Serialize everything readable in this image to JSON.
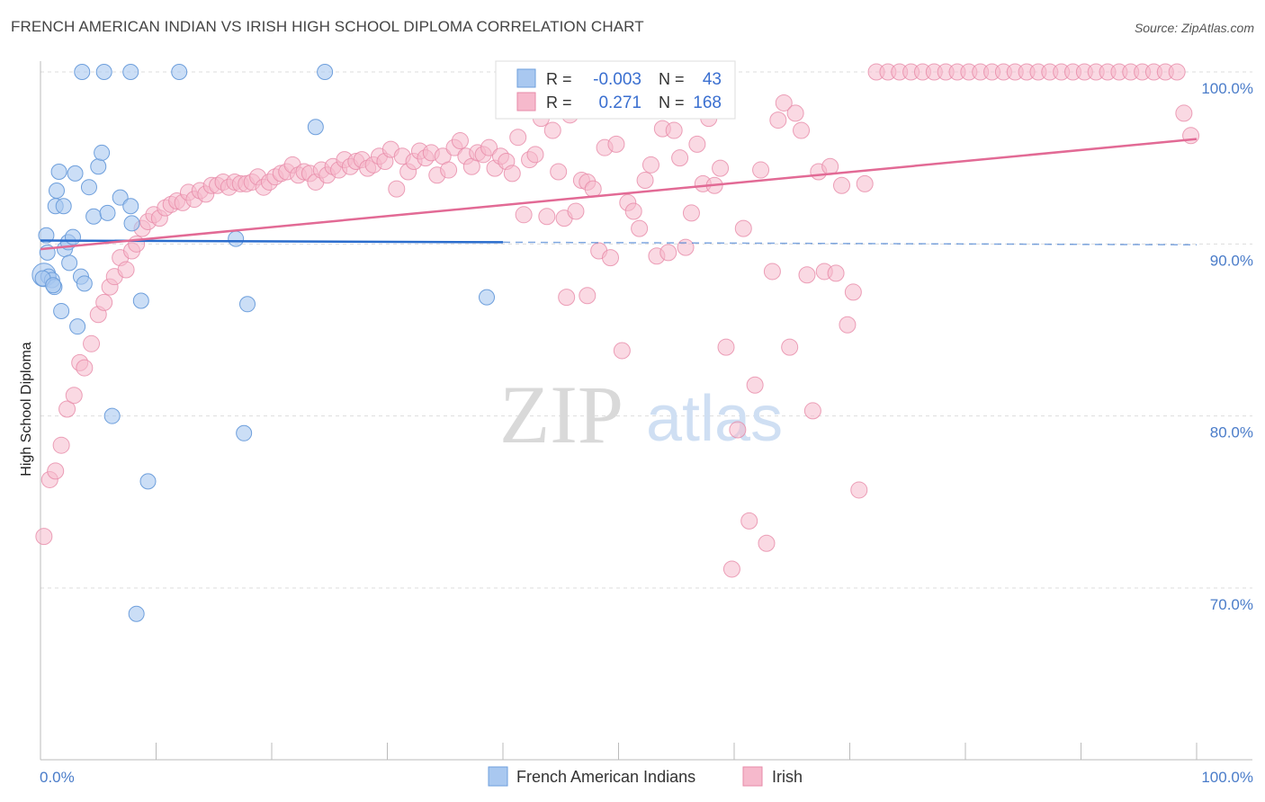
{
  "header": {
    "title": "FRENCH AMERICAN INDIAN VS IRISH HIGH SCHOOL DIPLOMA CORRELATION CHART",
    "source": "Source: ZipAtlas.com"
  },
  "watermark": {
    "zip": "ZIP",
    "atlas": "atlas"
  },
  "colors": {
    "blue_fill": "#a9c8f0",
    "blue_stroke": "#6e9fdc",
    "blue_line": "#2a6ccc",
    "pink_fill": "#f6b9cc",
    "pink_stroke": "#e78aa8",
    "pink_line": "#e26a95",
    "tick_label": "#4a7cc9",
    "grid": "#dddddd"
  },
  "legend": {
    "rows": [
      {
        "r_label": "R =",
        "r_value": "-0.003",
        "n_label": "N =",
        "n_value": "43"
      },
      {
        "r_label": "R =",
        "r_value": "0.271",
        "n_label": "N =",
        "n_value": "168"
      }
    ]
  },
  "chart_data": {
    "type": "scatter",
    "title": "FRENCH AMERICAN INDIAN VS IRISH HIGH SCHOOL DIPLOMA CORRELATION CHART",
    "xlabel": "",
    "ylabel": "High School Diploma",
    "xlim": [
      0,
      100
    ],
    "ylim": [
      60,
      100.5
    ],
    "x_tick_labels": [
      "0.0%",
      "100.0%"
    ],
    "y_ticks": [
      70,
      80,
      90,
      100
    ],
    "y_tick_labels": [
      "70.0%",
      "80.0%",
      "90.0%",
      "100.0%"
    ],
    "grid": true,
    "series": [
      {
        "name": "French American Indians",
        "r": -0.003,
        "n": 43,
        "trend": {
          "x0": 0,
          "y0": 90.2,
          "x1": 100,
          "y1": 89.95,
          "solid_until": 40
        },
        "points": [
          [
            0.3,
            88.2
          ],
          [
            0.5,
            90.5
          ],
          [
            0.6,
            89.5
          ],
          [
            0.7,
            88.1
          ],
          [
            1.0,
            87.9
          ],
          [
            1.2,
            87.5
          ],
          [
            1.3,
            92.2
          ],
          [
            1.4,
            93.1
          ],
          [
            1.6,
            94.2
          ],
          [
            1.8,
            86.1
          ],
          [
            2.0,
            92.2
          ],
          [
            2.1,
            89.7
          ],
          [
            2.4,
            90.1
          ],
          [
            2.5,
            88.9
          ],
          [
            2.8,
            90.4
          ],
          [
            3.0,
            94.1
          ],
          [
            3.2,
            85.2
          ],
          [
            3.5,
            88.1
          ],
          [
            3.8,
            87.7
          ],
          [
            4.2,
            93.3
          ],
          [
            4.6,
            91.6
          ],
          [
            5.0,
            94.5
          ],
          [
            5.3,
            95.3
          ],
          [
            5.8,
            91.8
          ],
          [
            6.2,
            80.0
          ],
          [
            6.9,
            92.7
          ],
          [
            7.8,
            92.2
          ],
          [
            7.9,
            91.2
          ],
          [
            8.3,
            68.5
          ],
          [
            8.7,
            86.7
          ],
          [
            9.3,
            76.2
          ],
          [
            16.9,
            90.3
          ],
          [
            17.6,
            79.0
          ],
          [
            17.9,
            86.5
          ],
          [
            23.8,
            96.8
          ],
          [
            38.6,
            86.9
          ],
          [
            3.6,
            100
          ],
          [
            5.5,
            100
          ],
          [
            7.8,
            100
          ],
          [
            12.0,
            100
          ],
          [
            24.6,
            100
          ],
          [
            0.2,
            88.0
          ],
          [
            1.1,
            87.6
          ]
        ]
      },
      {
        "name": "Irish",
        "r": 0.271,
        "n": 168,
        "trend": {
          "x0": 0,
          "y0": 89.7,
          "x1": 100,
          "y1": 96.1
        },
        "points": [
          [
            0.3,
            73.0
          ],
          [
            0.8,
            76.3
          ],
          [
            1.3,
            76.8
          ],
          [
            1.8,
            78.3
          ],
          [
            2.3,
            80.4
          ],
          [
            2.9,
            81.2
          ],
          [
            3.4,
            83.1
          ],
          [
            3.8,
            82.8
          ],
          [
            4.4,
            84.2
          ],
          [
            5.0,
            85.9
          ],
          [
            5.5,
            86.6
          ],
          [
            6.0,
            87.5
          ],
          [
            6.4,
            88.1
          ],
          [
            6.9,
            89.2
          ],
          [
            7.4,
            88.5
          ],
          [
            7.9,
            89.6
          ],
          [
            8.3,
            90.0
          ],
          [
            8.8,
            90.9
          ],
          [
            9.3,
            91.3
          ],
          [
            9.8,
            91.7
          ],
          [
            10.3,
            91.5
          ],
          [
            10.8,
            92.1
          ],
          [
            11.3,
            92.3
          ],
          [
            11.8,
            92.5
          ],
          [
            12.3,
            92.4
          ],
          [
            12.8,
            93.0
          ],
          [
            13.3,
            92.6
          ],
          [
            13.8,
            93.1
          ],
          [
            14.3,
            92.9
          ],
          [
            14.8,
            93.4
          ],
          [
            15.3,
            93.4
          ],
          [
            15.8,
            93.6
          ],
          [
            16.3,
            93.3
          ],
          [
            16.8,
            93.6
          ],
          [
            17.3,
            93.5
          ],
          [
            17.8,
            93.5
          ],
          [
            18.3,
            93.6
          ],
          [
            18.8,
            93.9
          ],
          [
            19.3,
            93.3
          ],
          [
            19.8,
            93.6
          ],
          [
            20.3,
            93.9
          ],
          [
            20.8,
            94.1
          ],
          [
            21.3,
            94.2
          ],
          [
            21.8,
            94.6
          ],
          [
            22.3,
            94.0
          ],
          [
            22.8,
            94.2
          ],
          [
            23.3,
            94.1
          ],
          [
            23.8,
            93.6
          ],
          [
            24.3,
            94.3
          ],
          [
            24.8,
            94.0
          ],
          [
            25.3,
            94.5
          ],
          [
            25.8,
            94.3
          ],
          [
            26.3,
            94.9
          ],
          [
            26.8,
            94.5
          ],
          [
            27.3,
            94.8
          ],
          [
            27.8,
            94.9
          ],
          [
            28.3,
            94.4
          ],
          [
            28.8,
            94.6
          ],
          [
            29.3,
            95.1
          ],
          [
            29.8,
            94.8
          ],
          [
            30.3,
            95.5
          ],
          [
            30.8,
            93.2
          ],
          [
            31.3,
            95.1
          ],
          [
            31.8,
            94.2
          ],
          [
            32.3,
            94.8
          ],
          [
            32.8,
            95.4
          ],
          [
            33.3,
            95.0
          ],
          [
            33.8,
            95.3
          ],
          [
            34.3,
            94.0
          ],
          [
            34.8,
            95.1
          ],
          [
            35.3,
            94.3
          ],
          [
            35.8,
            95.6
          ],
          [
            36.3,
            96.0
          ],
          [
            36.8,
            95.1
          ],
          [
            37.3,
            94.5
          ],
          [
            37.8,
            95.3
          ],
          [
            38.3,
            95.2
          ],
          [
            38.8,
            95.6
          ],
          [
            39.3,
            94.4
          ],
          [
            39.8,
            95.1
          ],
          [
            40.3,
            94.8
          ],
          [
            40.8,
            94.1
          ],
          [
            41.3,
            96.2
          ],
          [
            41.8,
            91.7
          ],
          [
            42.3,
            94.9
          ],
          [
            42.8,
            95.2
          ],
          [
            43.3,
            97.3
          ],
          [
            43.8,
            91.6
          ],
          [
            44.3,
            96.6
          ],
          [
            44.8,
            94.2
          ],
          [
            45.3,
            91.5
          ],
          [
            45.8,
            97.5
          ],
          [
            46.3,
            91.9
          ],
          [
            46.8,
            93.7
          ],
          [
            47.3,
            93.6
          ],
          [
            47.8,
            93.2
          ],
          [
            48.3,
            89.6
          ],
          [
            48.8,
            95.6
          ],
          [
            49.3,
            89.2
          ],
          [
            49.8,
            95.8
          ],
          [
            50.3,
            83.8
          ],
          [
            50.8,
            92.4
          ],
          [
            51.3,
            91.9
          ],
          [
            51.8,
            90.9
          ],
          [
            52.3,
            93.7
          ],
          [
            52.8,
            94.6
          ],
          [
            53.3,
            89.3
          ],
          [
            53.8,
            96.7
          ],
          [
            54.3,
            89.5
          ],
          [
            54.8,
            96.6
          ],
          [
            55.3,
            95.0
          ],
          [
            55.8,
            89.8
          ],
          [
            56.3,
            91.8
          ],
          [
            56.8,
            95.8
          ],
          [
            57.3,
            93.5
          ],
          [
            57.8,
            97.3
          ],
          [
            58.3,
            93.4
          ],
          [
            58.8,
            94.4
          ],
          [
            59.3,
            84.0
          ],
          [
            59.8,
            71.1
          ],
          [
            60.3,
            79.2
          ],
          [
            60.8,
            90.9
          ],
          [
            61.3,
            73.9
          ],
          [
            61.8,
            81.8
          ],
          [
            62.3,
            94.3
          ],
          [
            62.8,
            72.6
          ],
          [
            63.3,
            88.4
          ],
          [
            63.8,
            97.2
          ],
          [
            64.3,
            98.2
          ],
          [
            64.8,
            84.0
          ],
          [
            65.3,
            97.6
          ],
          [
            65.8,
            96.6
          ],
          [
            66.3,
            88.2
          ],
          [
            66.8,
            80.3
          ],
          [
            67.3,
            94.2
          ],
          [
            67.8,
            88.4
          ],
          [
            68.3,
            94.5
          ],
          [
            68.8,
            88.3
          ],
          [
            69.3,
            93.4
          ],
          [
            69.8,
            85.3
          ],
          [
            70.3,
            87.2
          ],
          [
            70.8,
            75.7
          ],
          [
            71.3,
            93.5
          ],
          [
            72.3,
            100
          ],
          [
            73.3,
            100
          ],
          [
            74.3,
            100
          ],
          [
            75.3,
            100
          ],
          [
            76.3,
            100
          ],
          [
            77.3,
            100
          ],
          [
            78.3,
            100
          ],
          [
            79.3,
            100
          ],
          [
            80.3,
            100
          ],
          [
            81.3,
            100
          ],
          [
            82.3,
            100
          ],
          [
            83.3,
            100
          ],
          [
            84.3,
            100
          ],
          [
            85.3,
            100
          ],
          [
            86.3,
            100
          ],
          [
            87.3,
            100
          ],
          [
            88.3,
            100
          ],
          [
            89.3,
            100
          ],
          [
            90.3,
            100
          ],
          [
            91.3,
            100
          ],
          [
            92.3,
            100
          ],
          [
            93.3,
            100
          ],
          [
            94.3,
            100
          ],
          [
            95.3,
            100
          ],
          [
            96.3,
            100
          ],
          [
            97.3,
            100
          ],
          [
            98.3,
            100
          ],
          [
            98.9,
            97.6
          ],
          [
            99.5,
            96.3
          ],
          [
            47.3,
            87.0
          ],
          [
            45.5,
            86.9
          ]
        ]
      }
    ]
  },
  "bottom_legend": {
    "items": [
      {
        "label": "French American Indians"
      },
      {
        "label": "Irish"
      }
    ]
  }
}
